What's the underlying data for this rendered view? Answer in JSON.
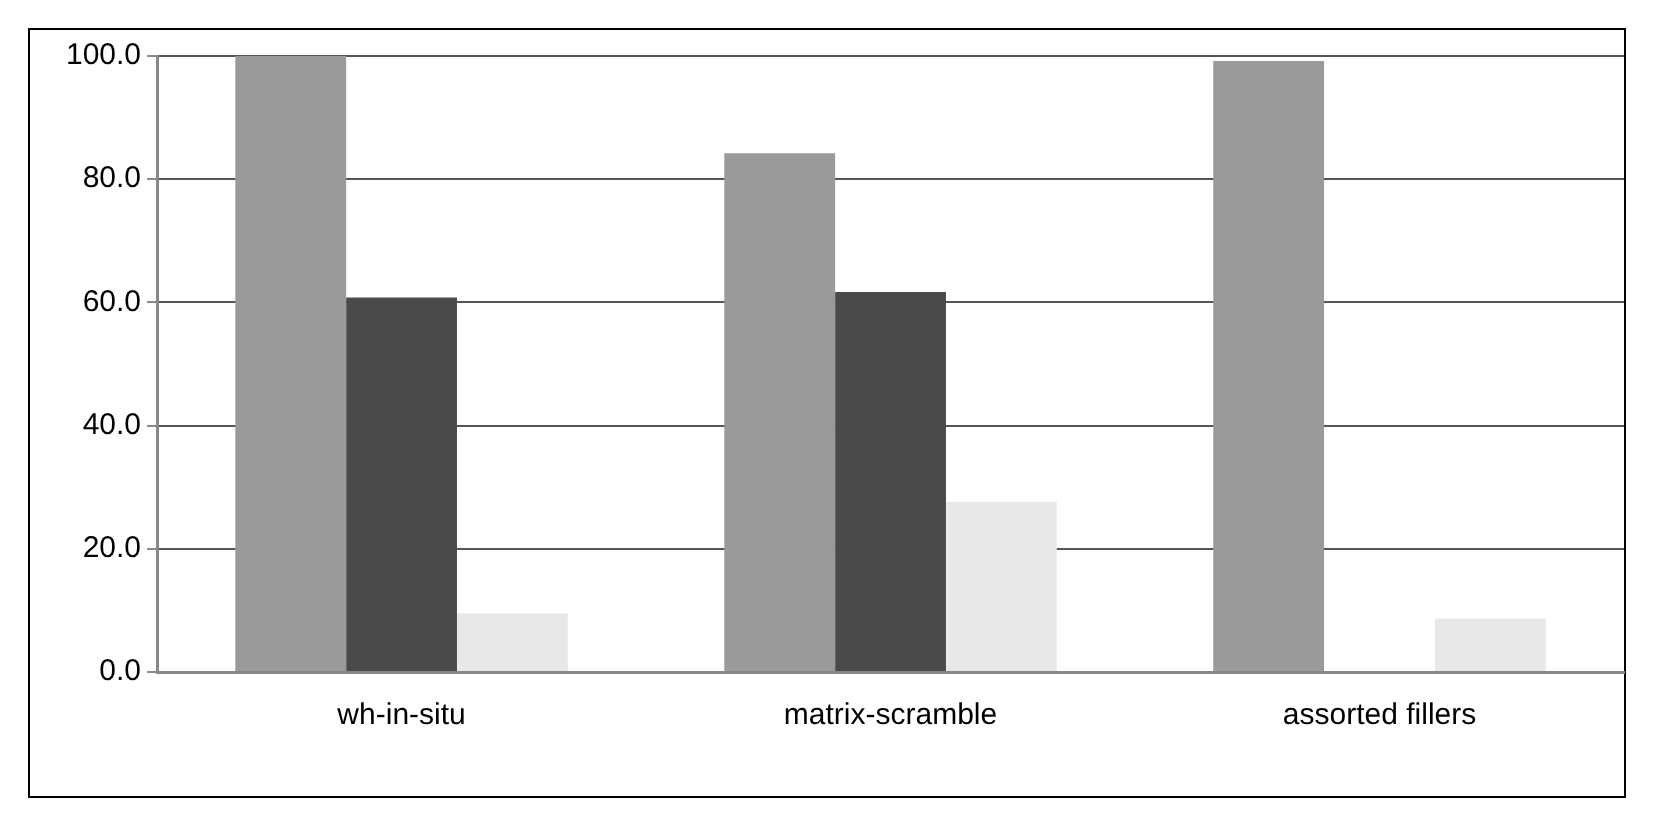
{
  "chart_data": {
    "type": "bar",
    "categories": [
      "wh-in-situ",
      "matrix-scramble",
      "assorted fillers"
    ],
    "series": [
      {
        "color": "#9a9a9a",
        "values": [
          100,
          84.2,
          99.2
        ]
      },
      {
        "color": "#4a4a4a",
        "values": [
          60.8,
          61.7,
          null
        ]
      },
      {
        "color": "#e8e8e8",
        "values": [
          9.5,
          27.6,
          8.7
        ]
      }
    ],
    "ylim": [
      0,
      100
    ],
    "yticks": [
      {
        "value": 0,
        "label": "0.0"
      },
      {
        "value": 20,
        "label": "20.0"
      },
      {
        "value": 40,
        "label": "40.0"
      },
      {
        "value": 60,
        "label": "60.0"
      },
      {
        "value": 80,
        "label": "80.0"
      },
      {
        "value": 100,
        "label": "100.0"
      }
    ],
    "grid": "y",
    "legend": false
  }
}
